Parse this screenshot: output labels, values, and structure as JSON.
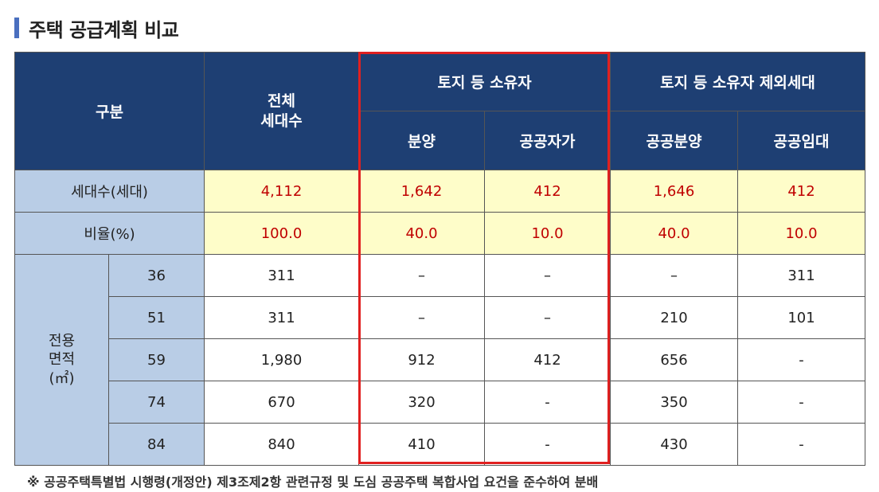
{
  "title": "주택 공급계획 비교",
  "headers": {
    "category": "구분",
    "total_units": "전체\n세대수",
    "group_owners": "토지 등 소유자",
    "group_others": "토지 등 소유자 제외세대",
    "sub_sale": "분양",
    "sub_self_owned": "공공자가",
    "sub_public_sale": "공공분양",
    "sub_public_rent": "공공임대"
  },
  "summary_rows": [
    {
      "label": "세대수(세대)",
      "values": [
        "4,112",
        "1,642",
        "412",
        "1,646",
        "412"
      ]
    },
    {
      "label": "비율(%)",
      "values": [
        "100.0",
        "40.0",
        "10.0",
        "40.0",
        "10.0"
      ]
    }
  ],
  "area_label": "전용\n면적\n(㎡)",
  "area_rows": [
    {
      "size": "36",
      "values": [
        "311",
        "–",
        "–",
        "–",
        "311"
      ]
    },
    {
      "size": "51",
      "values": [
        "311",
        "–",
        "–",
        "210",
        "101"
      ]
    },
    {
      "size": "59",
      "values": [
        "1,980",
        "912",
        "412",
        "656",
        "-"
      ]
    },
    {
      "size": "74",
      "values": [
        "670",
        "320",
        "-",
        "350",
        "-"
      ]
    },
    {
      "size": "84",
      "values": [
        "840",
        "410",
        "-",
        "430",
        "-"
      ]
    }
  ],
  "footnote": "※ 공공주택특별법 시행령(개정안) 제3조제2항 관련규정 및 도심 공공주택 복합사업 요건을 준수하여 분배"
}
